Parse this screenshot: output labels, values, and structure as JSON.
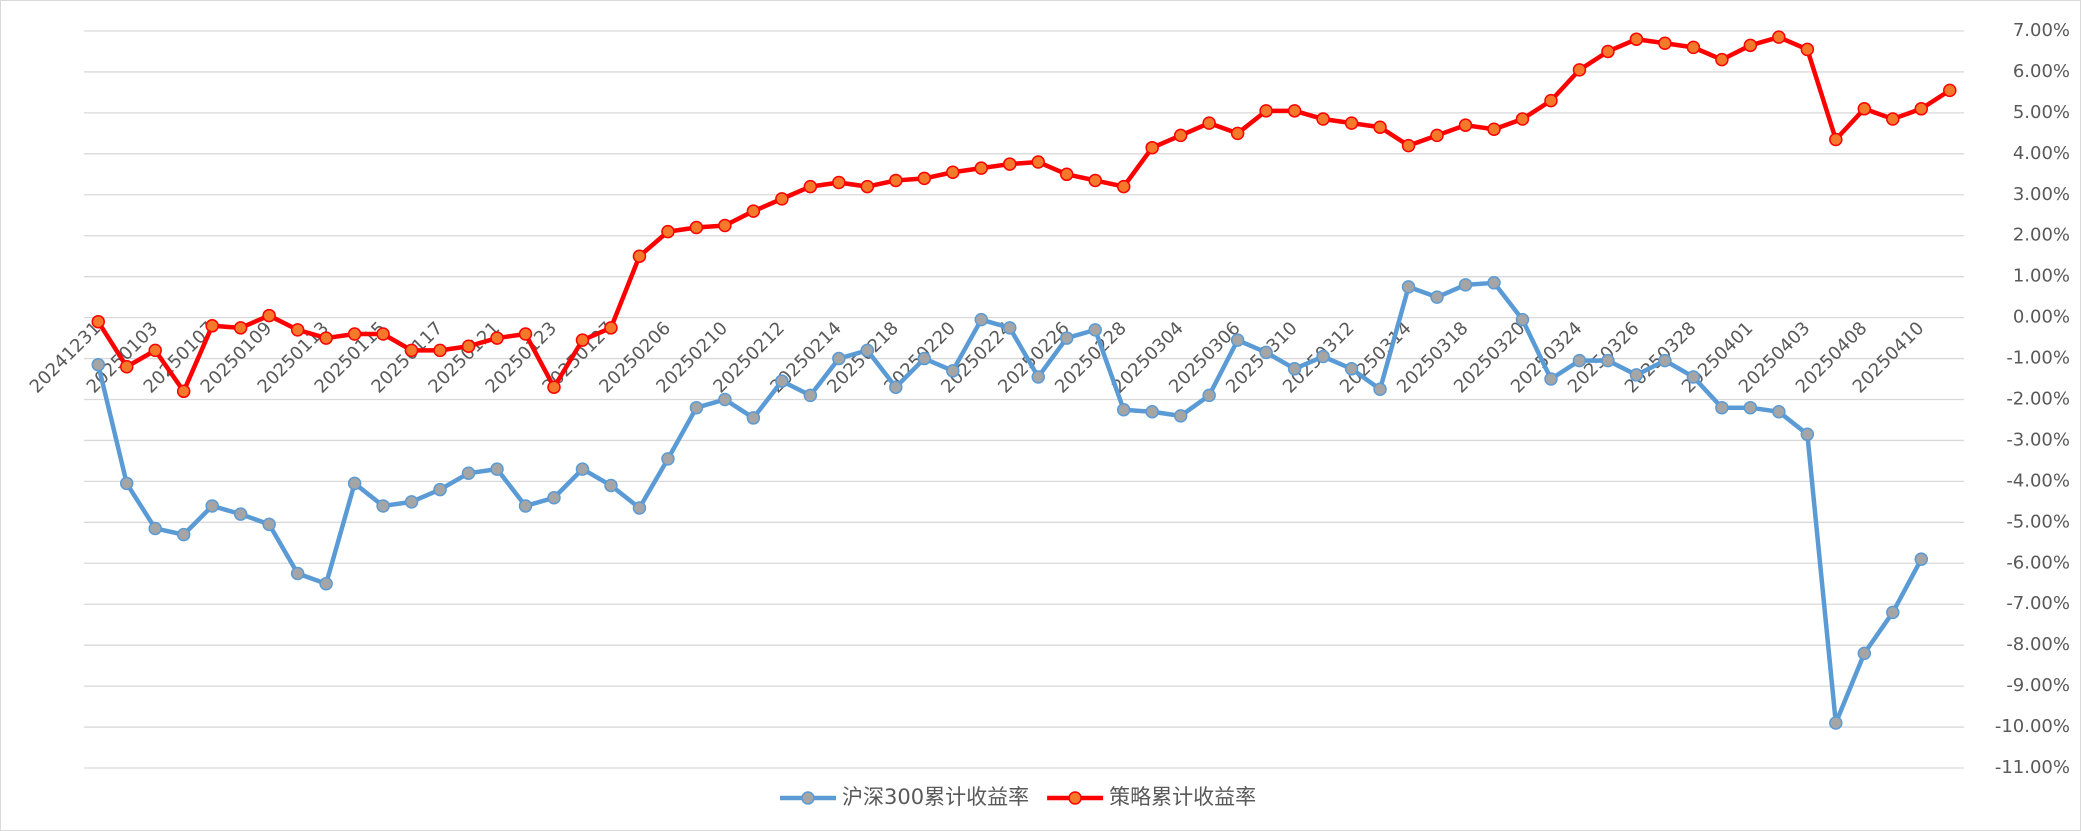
{
  "chart_data": {
    "type": "line",
    "categories": [
      "20241231",
      null,
      "20250103",
      null,
      "20250107",
      null,
      "20250109",
      null,
      "20250113",
      null,
      "20250115",
      null,
      "20250117",
      null,
      "20250121",
      null,
      "20250123",
      null,
      "20250127",
      null,
      "20250206",
      null,
      "20250210",
      null,
      "20250212",
      null,
      "20250214",
      null,
      "20250218",
      null,
      "20250220",
      null,
      "20250224",
      null,
      "20250226",
      null,
      "20250228",
      null,
      "20250304",
      null,
      "20250306",
      null,
      "20250310",
      null,
      "20250312",
      null,
      "20250314",
      null,
      "20250318",
      null,
      "20250320",
      null,
      "20250324",
      null,
      "20250326",
      null,
      "20250328",
      null,
      "20250401",
      null,
      "20250403",
      null,
      "20250408",
      null,
      "20250410",
      null
    ],
    "series": [
      {
        "name": "沪深300累计收益率",
        "color": "#5b9bd5",
        "marker_color": "#a5a5a5",
        "values": [
          -1.15,
          -4.05,
          -5.15,
          -5.3,
          -4.6,
          -4.8,
          -5.05,
          -6.25,
          -6.5,
          -4.05,
          -4.6,
          -4.5,
          -4.2,
          -3.8,
          -3.7,
          -4.6,
          -4.4,
          -3.7,
          -4.1,
          -4.65,
          -3.45,
          -2.2,
          -2.0,
          -2.45,
          -1.55,
          -1.9,
          -1.0,
          -0.8,
          -1.7,
          -1.0,
          -1.3,
          -0.05,
          -0.25,
          -1.45,
          -0.5,
          -0.3,
          -2.25,
          -2.3,
          -2.4,
          -1.9,
          -0.55,
          -0.85,
          -1.25,
          -0.95,
          -1.25,
          -1.75,
          0.75,
          0.5,
          0.8,
          0.85,
          -0.05,
          -1.5,
          -1.05,
          -1.05,
          -1.4,
          -1.05,
          -1.45,
          -2.2,
          -2.2,
          -2.3,
          -2.85,
          -9.9,
          -8.2,
          -7.2,
          -5.9,
          null
        ]
      },
      {
        "name": "策略累计收益率",
        "color": "#ff0000",
        "marker_color": "#f4792b",
        "values": [
          -0.1,
          -1.2,
          -0.8,
          -1.8,
          -0.2,
          -0.25,
          0.05,
          -0.3,
          -0.5,
          -0.4,
          -0.4,
          -0.8,
          -0.8,
          -0.7,
          -0.5,
          -0.4,
          -1.7,
          -0.55,
          -0.25,
          1.5,
          2.1,
          2.2,
          2.25,
          2.6,
          2.9,
          3.2,
          3.3,
          3.2,
          3.35,
          3.4,
          3.55,
          3.65,
          3.75,
          3.8,
          3.5,
          3.35,
          3.2,
          4.15,
          4.45,
          4.75,
          4.5,
          5.05,
          5.05,
          4.85,
          4.75,
          4.65,
          4.2,
          4.45,
          4.7,
          4.6,
          4.85,
          5.3,
          6.05,
          6.5,
          6.8,
          6.7,
          6.6,
          6.3,
          6.65,
          6.85,
          6.55,
          4.35,
          5.1,
          4.85,
          5.1,
          5.55
        ]
      }
    ],
    "ylim": [
      -11,
      7
    ],
    "yticks": [
      {
        "value": 7,
        "label": "7.00%"
      },
      {
        "value": 6,
        "label": "6.00%"
      },
      {
        "value": 5,
        "label": "5.00%"
      },
      {
        "value": 4,
        "label": "4.00%"
      },
      {
        "value": 3,
        "label": "3.00%"
      },
      {
        "value": 2,
        "label": "2.00%"
      },
      {
        "value": 1,
        "label": "1.00%"
      },
      {
        "value": 0,
        "label": "0.00%"
      },
      {
        "value": -1,
        "label": "-1.00%"
      },
      {
        "value": -2,
        "label": "-2.00%"
      },
      {
        "value": -3,
        "label": "-3.00%"
      },
      {
        "value": -4,
        "label": "-4.00%"
      },
      {
        "value": -5,
        "label": "-5.00%"
      },
      {
        "value": -6,
        "label": "-6.00%"
      },
      {
        "value": -7,
        "label": "-7.00%"
      },
      {
        "value": -8,
        "label": "-8.00%"
      },
      {
        "value": -9,
        "label": "-9.00%"
      },
      {
        "value": -10,
        "label": "-10.00%"
      },
      {
        "value": -11,
        "label": "-11.00%"
      }
    ],
    "grid": true,
    "legend": "bottom"
  }
}
